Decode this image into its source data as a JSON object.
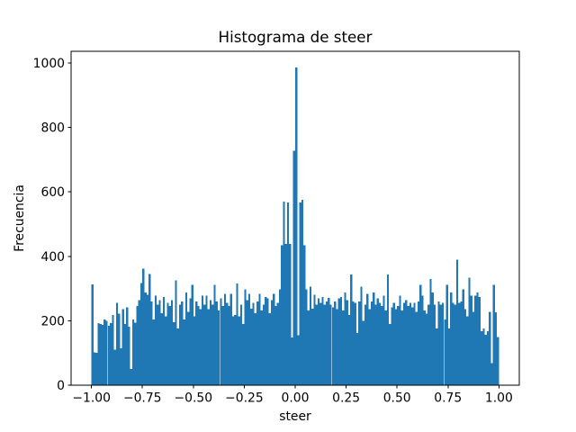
{
  "figure": {
    "background": "#ffffff"
  },
  "chart_data": {
    "type": "bar",
    "subtype": "histogram",
    "title": "Histograma de steer",
    "xlabel": "steer",
    "ylabel": "Frecuencia",
    "bar_color": "#1f77b4",
    "axis_color": "#000000",
    "grid": false,
    "legend": null,
    "xlim": [
      -1.1,
      1.1
    ],
    "ylim": [
      0,
      1036
    ],
    "x_tick_values": [
      -1.0,
      -0.75,
      -0.5,
      -0.25,
      0.0,
      0.25,
      0.5,
      0.75,
      1.0
    ],
    "x_tick_labels": [
      "−1.00",
      "−0.75",
      "−0.50",
      "−0.25",
      "0.00",
      "0.25",
      "0.50",
      "0.75",
      "1.00"
    ],
    "y_tick_values": [
      0,
      200,
      400,
      600,
      800,
      1000
    ],
    "y_tick_labels": [
      "0",
      "200",
      "400",
      "600",
      "800",
      "1000"
    ],
    "bin_start": -1.0,
    "bin_width": 0.01,
    "values": [
      313,
      102,
      100,
      192,
      190,
      187,
      204,
      199,
      185,
      192,
      218,
      111,
      255,
      222,
      115,
      236,
      190,
      241,
      181,
      50,
      204,
      194,
      246,
      264,
      317,
      362,
      288,
      280,
      345,
      260,
      204,
      278,
      250,
      264,
      224,
      274,
      213,
      255,
      246,
      264,
      195,
      325,
      176,
      250,
      260,
      204,
      288,
      227,
      269,
      311,
      213,
      260,
      246,
      236,
      278,
      250,
      278,
      236,
      264,
      250,
      311,
      260,
      232,
      269,
      246,
      283,
      255,
      246,
      283,
      213,
      218,
      316,
      213,
      250,
      190,
      297,
      264,
      283,
      237,
      255,
      223,
      260,
      283,
      232,
      250,
      274,
      269,
      223,
      264,
      283,
      246,
      255,
      297,
      434,
      570,
      438,
      567,
      438,
      148,
      727,
      986,
      155,
      567,
      575,
      434,
      297,
      232,
      306,
      237,
      280,
      250,
      269,
      255,
      274,
      250,
      260,
      271,
      250,
      241,
      260,
      236,
      269,
      274,
      232,
      288,
      264,
      218,
      343,
      260,
      255,
      162,
      260,
      306,
      199,
      250,
      283,
      236,
      260,
      288,
      250,
      269,
      255,
      246,
      278,
      232,
      343,
      190,
      241,
      255,
      236,
      246,
      278,
      232,
      255,
      264,
      246,
      255,
      241,
      255,
      227,
      260,
      311,
      278,
      232,
      222,
      250,
      329,
      288,
      250,
      176,
      260,
      250,
      255,
      204,
      311,
      176,
      288,
      255,
      250,
      390,
      255,
      260,
      297,
      236,
      213,
      334,
      278,
      227,
      278,
      288,
      274,
      167,
      176,
      157,
      167,
      227,
      69,
      311,
      226,
      150
    ]
  }
}
